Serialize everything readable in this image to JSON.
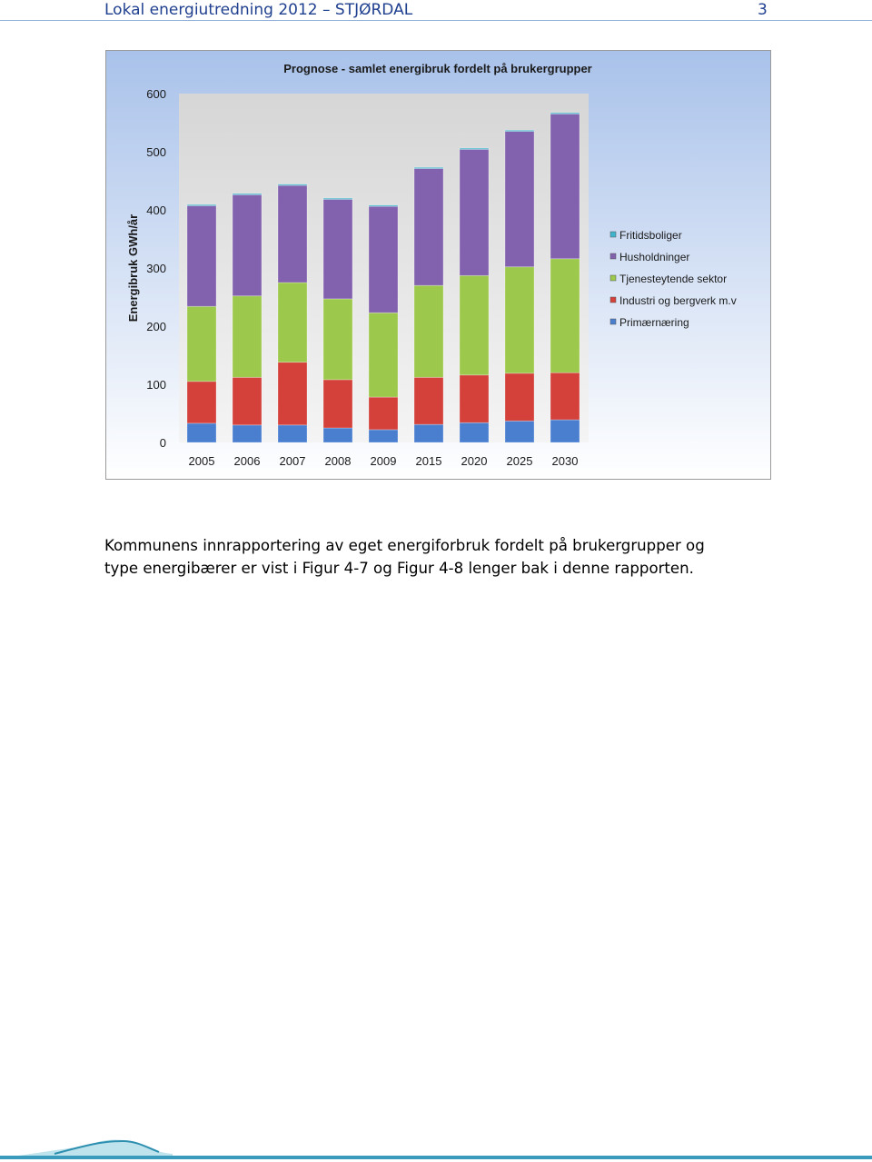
{
  "header": {
    "title": "Lokal energiutredning 2012 – STJØRDAL",
    "page": "3"
  },
  "chart_data": {
    "type": "bar",
    "stacked": true,
    "title": "Prognose - samlet energibruk fordelt på brukergrupper",
    "y_label": "Energibruk GWh/år",
    "categories": [
      "2005",
      "2006",
      "2007",
      "2008",
      "2009",
      "2015",
      "2020",
      "2025",
      "2030"
    ],
    "series": [
      {
        "name": "Primærnæring",
        "color": "#4a7fd0",
        "values": [
          33,
          30,
          30,
          25,
          22,
          31,
          34,
          37,
          39
        ]
      },
      {
        "name": "Industri og bergverk m.v",
        "color": "#d4403a",
        "values": [
          72,
          82,
          108,
          83,
          56,
          81,
          82,
          82,
          81
        ]
      },
      {
        "name": "Tjenesteytende sektor",
        "color": "#9cc84c",
        "values": [
          129,
          140,
          137,
          139,
          145,
          158,
          171,
          183,
          196
        ]
      },
      {
        "name": "Husholdninger",
        "color": "#8261ae",
        "values": [
          173,
          174,
          167,
          171,
          183,
          201,
          217,
          233,
          249
        ]
      },
      {
        "name": "Fritidsboliger",
        "color": "#3fb4cc",
        "values": [
          2,
          2,
          2,
          2,
          2,
          2,
          2,
          2,
          2
        ]
      }
    ],
    "ylim": [
      0,
      600
    ],
    "yticks": [
      0,
      100,
      200,
      300,
      400,
      500,
      600
    ],
    "grid": false,
    "legend": "right"
  },
  "paragraph": {
    "lines": [
      "Kommunens innrapportering av eget energiforbruk fordelt på brukergrupper og",
      "type energibærer er vist i Figur 4-7 og Figur 4-8 lenger bak i denne rapporten."
    ]
  }
}
